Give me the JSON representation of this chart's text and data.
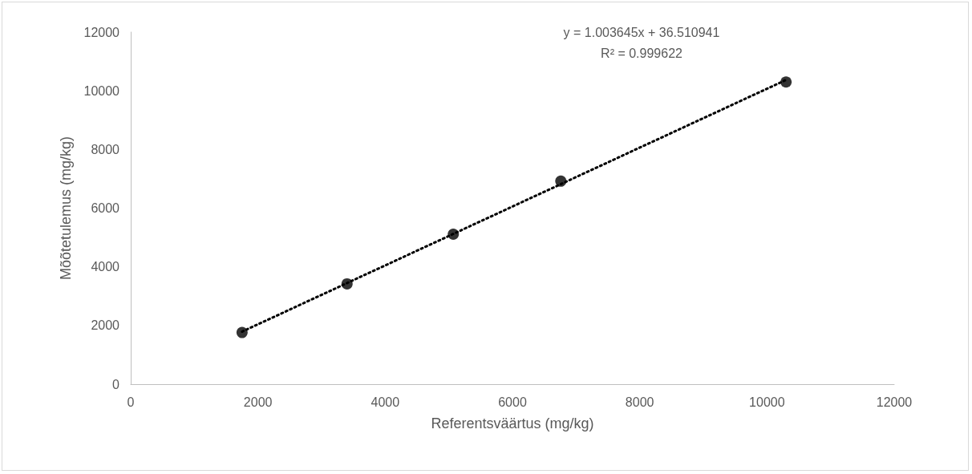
{
  "chart_data": {
    "type": "scatter",
    "xlabel": "Referentsväärtus (mg/kg)",
    "ylabel": "Mõõtetulemus (mg/kg)",
    "annotations": [
      "y = 1.003645x + 36.510941\nR² = 0.999622"
    ],
    "series": [
      {
        "color": "#000000",
        "marker": "circle",
        "x": [
          1750,
          3400,
          5070,
          6760,
          10300
        ],
        "values": [
          1760,
          3420,
          5110,
          6920,
          10300
        ]
      },
      {
        "type": "line",
        "color": "#000000",
        "line_style": "dotted",
        "marker": "none",
        "x": [
          1750,
          10300
        ],
        "values": [
          1790,
          10370
        ]
      }
    ],
    "xlim": [
      0,
      12000
    ],
    "xticks": [
      0,
      2000,
      4000,
      6000,
      8000,
      10000,
      12000
    ],
    "ylim": [
      0,
      12000
    ],
    "yticks": [
      0,
      2000,
      4000,
      6000,
      8000,
      10000,
      12000
    ],
    "grid": false
  }
}
